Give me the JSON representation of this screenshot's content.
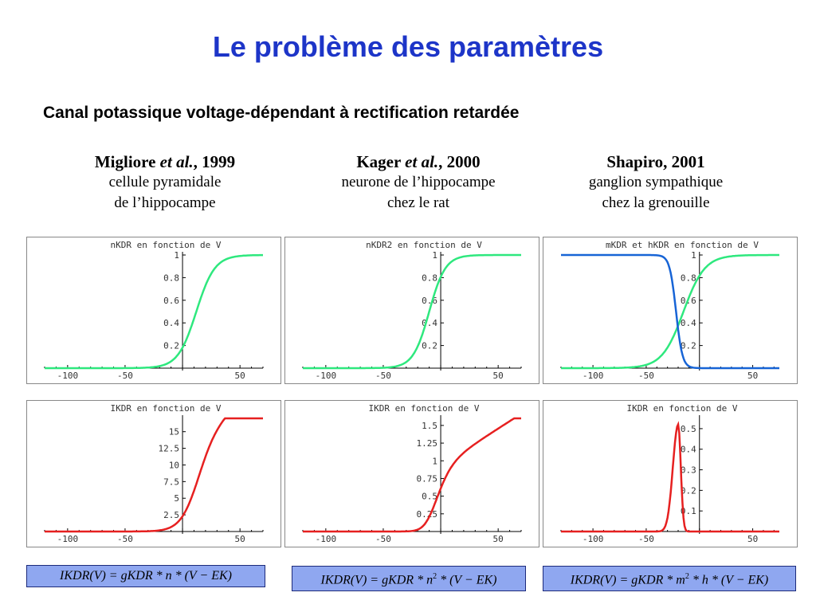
{
  "slide": {
    "title": "Le problème des paramètres",
    "subtitle": "Canal potassique voltage-dépendant à rectification retardée"
  },
  "columns": [
    {
      "author": "Migliore",
      "etal": "et al.",
      "year": ", 1999",
      "line1": "cellule pyramidale",
      "line2": "de l’hippocampe"
    },
    {
      "author": "Kager",
      "etal": "et al.",
      "year": ", 2000",
      "line1": "neurone de l’hippocampe",
      "line2": "chez le rat"
    },
    {
      "author": "Shapiro, 2001",
      "etal": "",
      "year": "",
      "line1": "ganglion sympathique",
      "line2": "chez la grenouille"
    }
  ],
  "chart_data": [
    {
      "type": "line",
      "title": "nKDR en fonction de V",
      "x_ticks": [
        "-100",
        "-50",
        "50"
      ],
      "y_ticks": [
        "1",
        "0.8",
        "0.6",
        "0.4",
        "0.2"
      ],
      "xlim": [
        -120,
        70
      ],
      "ylim": [
        0,
        1
      ],
      "series": [
        {
          "color": "#2ee87e",
          "curve": {
            "kind": "sigmoid",
            "top": 1,
            "mid": 12,
            "slope": 8
          }
        }
      ]
    },
    {
      "type": "line",
      "title": "nKDR2 en fonction de V",
      "x_ticks": [
        "-100",
        "-50",
        "50"
      ],
      "y_ticks": [
        "1",
        "0.8",
        "0.6",
        "0.4",
        "0.2"
      ],
      "xlim": [
        -120,
        70
      ],
      "ylim": [
        0,
        1
      ],
      "series": [
        {
          "color": "#2ee87e",
          "curve": {
            "kind": "sigmoid",
            "top": 1,
            "mid": -10,
            "slope": 7
          }
        }
      ]
    },
    {
      "type": "line",
      "title": "mKDR et hKDR en fonction de V",
      "x_ticks": [
        "-100",
        "-50",
        "50"
      ],
      "y_ticks": [
        "1",
        "0.8",
        "0.6",
        "0.4",
        "0.2"
      ],
      "xlim": [
        -130,
        75
      ],
      "ylim": [
        0,
        1
      ],
      "series": [
        {
          "color": "#2ee87e",
          "curve": {
            "kind": "sigmoid",
            "top": 1,
            "mid": -15,
            "slope": 10
          }
        },
        {
          "color": "#1764d6",
          "curve": {
            "kind": "sigmoid",
            "top": 1,
            "mid": -22,
            "slope": -3
          }
        }
      ]
    },
    {
      "type": "line",
      "title": "IKDR en fonction de V",
      "x_ticks": [
        "-100",
        "-50",
        "50"
      ],
      "y_ticks": [
        "15",
        "12.5",
        "10",
        "7.5",
        "5",
        "2.5"
      ],
      "xlim": [
        -120,
        70
      ],
      "ylim": [
        0,
        17
      ],
      "series": [
        {
          "color": "#e62020",
          "curve": {
            "kind": "current",
            "mid": 12,
            "slope": 8,
            "scale": 0.14,
            "ek": -90,
            "pow": 1
          }
        }
      ]
    },
    {
      "type": "line",
      "title": "IKDR en fonction de V",
      "x_ticks": [
        "-100",
        "-50",
        "50"
      ],
      "y_ticks": [
        "1.5",
        "1.25",
        "1",
        "0.75",
        "0.5",
        "0.25"
      ],
      "xlim": [
        -120,
        70
      ],
      "ylim": [
        0,
        1.6
      ],
      "series": [
        {
          "color": "#e62020",
          "curve": {
            "kind": "current",
            "mid": -10,
            "slope": 7,
            "scale": 0.0104,
            "ek": -90,
            "pow": 2
          }
        }
      ]
    },
    {
      "type": "line",
      "title": "IKDR en fonction de V",
      "x_ticks": [
        "-100",
        "-50",
        "50"
      ],
      "y_ticks": [
        "0.5",
        "0.4",
        "0.3",
        "0.2",
        "0.1"
      ],
      "xlim": [
        -130,
        75
      ],
      "ylim": [
        0,
        0.55
      ],
      "series": [
        {
          "color": "#e62020",
          "curve": {
            "kind": "peak",
            "peak": 0.52,
            "center": -20,
            "rise": 7,
            "fall": 3.5
          }
        }
      ]
    }
  ],
  "formulas": [
    {
      "lhs": "IKDR(V) = gKDR * n * (V − EK)",
      "pre": "",
      "sup": "",
      "post": ""
    },
    {
      "lhs": "IKDR(V) = gKDR * n",
      "pre": "",
      "sup": "2",
      "post": " * (V − EK)"
    },
    {
      "lhs": "IKDR(V) = gKDR * m",
      "pre": "",
      "sup": "2",
      "post": " * h * (V − EK)"
    }
  ],
  "colors": {
    "title": "#1d35c8",
    "formula_bg": "#8fa7f0",
    "green": "#2ee87e",
    "blue": "#1764d6",
    "red": "#e62020"
  }
}
